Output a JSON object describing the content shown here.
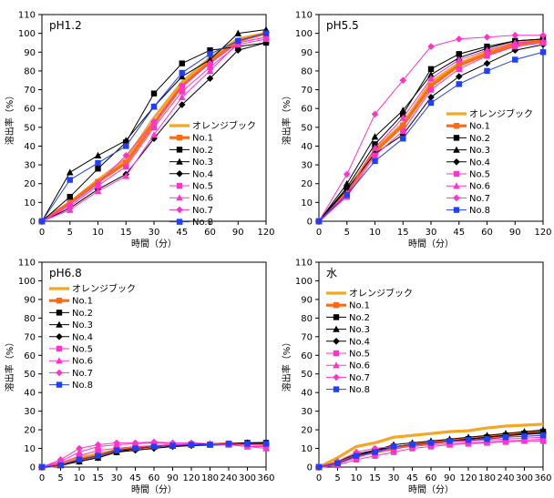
{
  "series_style": [
    {
      "name": "オレンジブック",
      "color": "#f5a623",
      "marker": "none",
      "width": 3.2
    },
    {
      "name": "No.1",
      "color": "#ff6a13",
      "marker": "square",
      "width": 3.2
    },
    {
      "name": "No.2",
      "color": "#000000",
      "marker": "square",
      "width": 1
    },
    {
      "name": "No.3",
      "color": "#000000",
      "marker": "triangle",
      "width": 1
    },
    {
      "name": "No.4",
      "color": "#000000",
      "marker": "diamond",
      "width": 1
    },
    {
      "name": "No.5",
      "color": "#ff33cc",
      "marker": "square",
      "width": 1
    },
    {
      "name": "No.6",
      "color": "#ff33cc",
      "marker": "triangle",
      "width": 1
    },
    {
      "name": "No.7",
      "color": "#ff33cc",
      "marker": "diamond",
      "width": 1
    },
    {
      "name": "No.8",
      "color": "#1f3fff",
      "marker": "square",
      "width": 1
    }
  ],
  "chart_data": [
    {
      "type": "line",
      "title": "pH1.2",
      "xlabel": "時間（分）",
      "ylabel": "溶出率（%）",
      "categories": [
        "0",
        "5",
        "10",
        "15",
        "30",
        "45",
        "60",
        "90",
        "120"
      ],
      "ylim": [
        0,
        110
      ],
      "yticks": [
        0,
        10,
        20,
        30,
        40,
        50,
        60,
        70,
        80,
        90,
        100,
        110
      ],
      "legend_position": "lower-right",
      "series": [
        {
          "name": "オレンジブック",
          "values": [
            0,
            10,
            22,
            33,
            55,
            74,
            87,
            97,
            100
          ]
        },
        {
          "name": "No.1",
          "values": [
            0,
            10,
            21,
            31,
            52,
            72,
            85,
            96,
            100
          ]
        },
        {
          "name": "No.2",
          "values": [
            0,
            13,
            28,
            42,
            68,
            84,
            91,
            93,
            95
          ]
        },
        {
          "name": "No.3",
          "values": [
            0,
            26,
            35,
            43,
            61,
            77,
            86,
            100,
            102
          ]
        },
        {
          "name": "No.4",
          "values": [
            0,
            7,
            17,
            25,
            44,
            62,
            76,
            91,
            95
          ]
        },
        {
          "name": "No.5",
          "values": [
            0,
            8,
            19,
            29,
            50,
            69,
            82,
            94,
            97
          ]
        },
        {
          "name": "No.6",
          "values": [
            0,
            6,
            16,
            24,
            46,
            66,
            80,
            95,
            98
          ]
        },
        {
          "name": "No.7",
          "values": [
            0,
            9,
            20,
            35,
            53,
            72,
            84,
            95,
            98
          ]
        },
        {
          "name": "No.8",
          "values": [
            0,
            22,
            31,
            40,
            61,
            79,
            89,
            96,
            100
          ]
        }
      ]
    },
    {
      "type": "line",
      "title": "pH5.5",
      "xlabel": "時間（分）",
      "ylabel": "溶出率（%）",
      "categories": [
        "0",
        "5",
        "10",
        "15",
        "30",
        "45",
        "60",
        "90",
        "120"
      ],
      "ylim": [
        0,
        110
      ],
      "yticks": [
        0,
        10,
        20,
        30,
        40,
        50,
        60,
        70,
        80,
        90,
        100,
        110
      ],
      "legend_position": "lower-right",
      "series": [
        {
          "name": "オレンジブック",
          "values": [
            0,
            16,
            38,
            52,
            74,
            84,
            90,
            95,
            96
          ]
        },
        {
          "name": "No.1",
          "values": [
            0,
            15,
            37,
            51,
            72,
            83,
            89,
            94,
            96
          ]
        },
        {
          "name": "No.2",
          "values": [
            0,
            18,
            41,
            57,
            81,
            89,
            93,
            96,
            97
          ]
        },
        {
          "name": "No.3",
          "values": [
            0,
            20,
            45,
            59,
            78,
            87,
            92,
            96,
            97
          ]
        },
        {
          "name": "No.4",
          "values": [
            0,
            17,
            36,
            46,
            66,
            77,
            84,
            91,
            94
          ]
        },
        {
          "name": "No.5",
          "values": [
            0,
            13,
            35,
            48,
            70,
            81,
            88,
            93,
            95
          ]
        },
        {
          "name": "No.6",
          "values": [
            0,
            15,
            39,
            55,
            76,
            86,
            91,
            95,
            96
          ]
        },
        {
          "name": "No.7",
          "values": [
            0,
            25,
            57,
            75,
            93,
            97,
            98,
            99,
            99
          ]
        },
        {
          "name": "No.8",
          "values": [
            0,
            14,
            32,
            44,
            63,
            73,
            80,
            86,
            90
          ]
        }
      ]
    },
    {
      "type": "line",
      "title": "pH6.8",
      "xlabel": "時間（分）",
      "ylabel": "溶出率（%）",
      "categories": [
        "0",
        "5",
        "10",
        "15",
        "30",
        "45",
        "60",
        "90",
        "120",
        "180",
        "240",
        "300",
        "360"
      ],
      "ylim": [
        0,
        110
      ],
      "yticks": [
        0,
        10,
        20,
        30,
        40,
        50,
        60,
        70,
        80,
        90,
        100,
        110
      ],
      "legend_position": "upper-left",
      "series": [
        {
          "name": "オレンジブック",
          "values": [
            0,
            2,
            5,
            7,
            9,
            10,
            11,
            11.5,
            12,
            12,
            12.5,
            12.5,
            13
          ]
        },
        {
          "name": "No.1",
          "values": [
            0,
            1,
            4,
            6,
            9,
            10,
            11,
            11.5,
            12,
            12,
            12.5,
            12.5,
            12.5
          ]
        },
        {
          "name": "No.2",
          "values": [
            0,
            1,
            4,
            6,
            9,
            10,
            11,
            11.5,
            12,
            12,
            12.5,
            13,
            13
          ]
        },
        {
          "name": "No.3",
          "values": [
            0,
            1,
            3,
            5,
            8,
            10,
            11,
            11.5,
            12,
            12.5,
            12.5,
            13,
            13
          ]
        },
        {
          "name": "No.4",
          "values": [
            0,
            1,
            3,
            5,
            8,
            9,
            10,
            11,
            11.5,
            12,
            12,
            12.5,
            12.5
          ]
        },
        {
          "name": "No.5",
          "values": [
            0,
            2,
            6,
            9,
            10,
            11,
            11.5,
            12,
            12,
            12,
            12,
            11,
            11
          ]
        },
        {
          "name": "No.6",
          "values": [
            0,
            3,
            8,
            11,
            12,
            12.5,
            13,
            12.5,
            12,
            12,
            12,
            11,
            10
          ]
        },
        {
          "name": "No.7",
          "values": [
            0,
            4,
            10,
            12,
            13,
            13,
            13.5,
            13,
            13,
            12.5,
            12.5,
            12,
            11.5
          ]
        },
        {
          "name": "No.8",
          "values": [
            0,
            1,
            4,
            6,
            9,
            10,
            11,
            11.5,
            12,
            12,
            12.5,
            12.5,
            12.5
          ]
        }
      ]
    },
    {
      "type": "line",
      "title": "水",
      "xlabel": "時間（分）",
      "ylabel": "溶出率（%）",
      "categories": [
        "0",
        "5",
        "10",
        "15",
        "30",
        "45",
        "60",
        "90",
        "120",
        "180",
        "240",
        "300",
        "360"
      ],
      "ylim": [
        0,
        110
      ],
      "yticks": [
        0,
        10,
        20,
        30,
        40,
        50,
        60,
        70,
        80,
        90,
        100,
        110
      ],
      "legend_position": "upper-left",
      "series": [
        {
          "name": "オレンジブック",
          "values": [
            0,
            5,
            11,
            13,
            16,
            17,
            18,
            19,
            19.5,
            21,
            22,
            22.5,
            23
          ]
        },
        {
          "name": "No.1",
          "values": [
            0,
            2,
            6,
            8,
            10,
            12,
            13,
            14,
            15,
            16,
            17,
            18,
            19
          ]
        },
        {
          "name": "No.2",
          "values": [
            0,
            2,
            6,
            8,
            11,
            12,
            13,
            14,
            15,
            16,
            17,
            18,
            19
          ]
        },
        {
          "name": "No.3",
          "values": [
            0,
            3,
            7,
            9,
            12,
            13,
            14,
            15,
            16,
            17,
            18,
            19,
            20
          ]
        },
        {
          "name": "No.4",
          "values": [
            0,
            2,
            6,
            9,
            11,
            12,
            13,
            14,
            15,
            16,
            17,
            17.5,
            18
          ]
        },
        {
          "name": "No.5",
          "values": [
            0,
            1,
            4,
            6,
            8,
            10,
            11,
            12,
            12.5,
            13,
            13.5,
            14,
            14
          ]
        },
        {
          "name": "No.6",
          "values": [
            0,
            2,
            5,
            8,
            10,
            11,
            12,
            12.5,
            13,
            13.5,
            14,
            14.5,
            15
          ]
        },
        {
          "name": "No.7",
          "values": [
            0,
            3,
            8,
            10,
            11,
            12,
            13,
            13.5,
            14,
            14.5,
            15,
            15.5,
            16
          ]
        },
        {
          "name": "No.8",
          "values": [
            0,
            2,
            6,
            8,
            11,
            12,
            13,
            14,
            14.5,
            15,
            16,
            16.5,
            17
          ]
        }
      ]
    }
  ]
}
